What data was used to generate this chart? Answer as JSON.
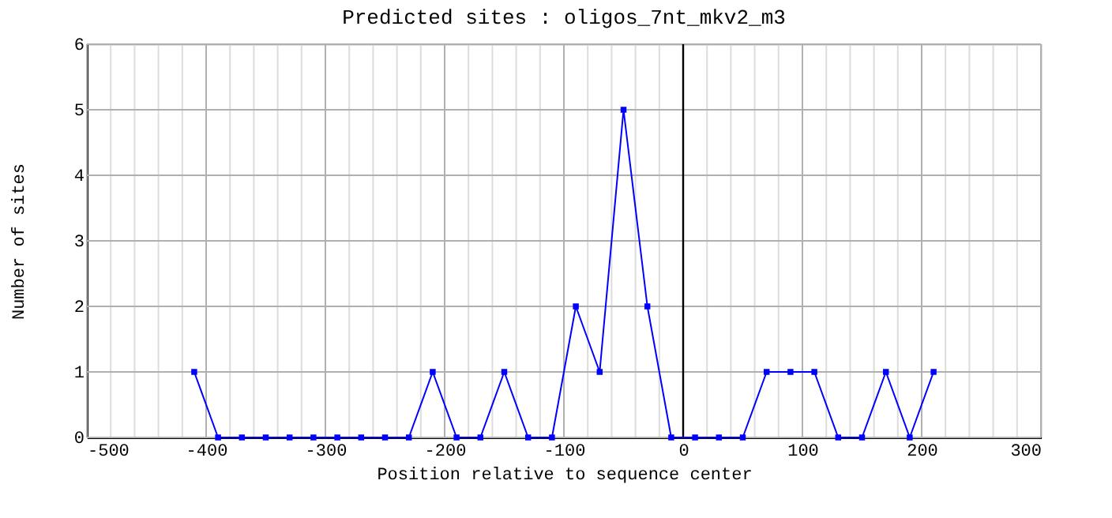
{
  "chart_data": {
    "type": "line",
    "title": "Predicted sites : oligos_7nt_mkv2_m3",
    "xlabel": "Position relative to sequence center",
    "ylabel": "Number of sites",
    "x": [
      -410,
      -390,
      -370,
      -350,
      -330,
      -310,
      -290,
      -270,
      -250,
      -230,
      -210,
      -190,
      -170,
      -150,
      -130,
      -110,
      -90,
      -70,
      -50,
      -30,
      -10,
      10,
      30,
      50,
      70,
      90,
      110,
      130,
      150,
      170,
      190,
      210
    ],
    "series": [
      {
        "color": "#0000ff",
        "values": [
          1,
          0,
          0,
          0,
          0,
          0,
          0,
          0,
          0,
          0,
          1,
          0,
          0,
          1,
          0,
          0,
          2,
          1,
          5,
          2,
          0,
          0,
          0,
          0,
          1,
          1,
          1,
          0,
          0,
          1,
          0,
          1
        ]
      }
    ],
    "xlim": [
      -500,
      300
    ],
    "xticks": [
      -500,
      {
        "value": -480,
        "label": null
      },
      {
        "value": -460,
        "label": null
      },
      {
        "value": -440,
        "label": null
      },
      {
        "value": -420,
        "label": null
      },
      -400,
      {
        "value": -380,
        "label": null
      },
      {
        "value": -360,
        "label": null
      },
      {
        "value": -340,
        "label": null
      },
      {
        "value": -320,
        "label": null
      },
      -300,
      {
        "value": -280,
        "label": null
      },
      {
        "value": -260,
        "label": null
      },
      {
        "value": -240,
        "label": null
      },
      {
        "value": -220,
        "label": null
      },
      -200,
      {
        "value": -180,
        "label": null
      },
      {
        "value": -160,
        "label": null
      },
      {
        "value": -140,
        "label": null
      },
      {
        "value": -120,
        "label": null
      },
      -100,
      {
        "value": -80,
        "label": null
      },
      {
        "value": -60,
        "label": null
      },
      {
        "value": -40,
        "label": null
      },
      {
        "value": -20,
        "label": null
      },
      0,
      {
        "value": 20,
        "label": null
      },
      {
        "value": 40,
        "label": null
      },
      {
        "value": 60,
        "label": null
      },
      {
        "value": 80,
        "label": null
      },
      100,
      {
        "value": 120,
        "label": null
      },
      {
        "value": 140,
        "label": null
      },
      {
        "value": 160,
        "label": null
      },
      {
        "value": 180,
        "label": null
      },
      200,
      {
        "value": 220,
        "label": null
      },
      {
        "value": 240,
        "label": null
      },
      {
        "value": 260,
        "label": null
      },
      {
        "value": 280,
        "label": null
      },
      300
    ],
    "ylim": [
      0,
      6
    ],
    "yticks": [
      0,
      1,
      2,
      3,
      4,
      5,
      6
    ],
    "grid": true,
    "marker": "square",
    "line_style": "solid",
    "ref_lines": [
      {
        "axis": "x",
        "value": 0,
        "color": "#000000"
      }
    ]
  }
}
